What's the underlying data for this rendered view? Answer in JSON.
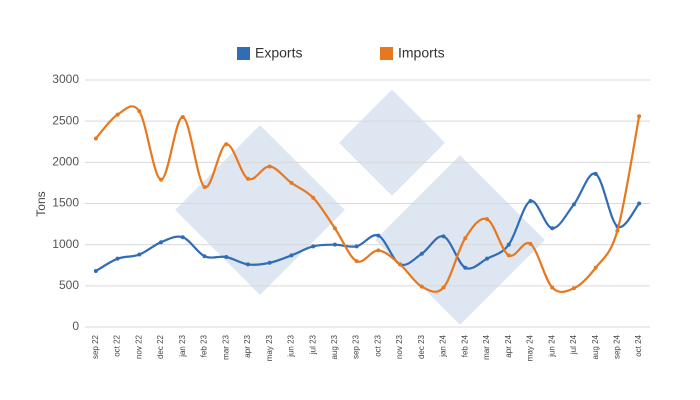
{
  "chart_data": {
    "type": "line",
    "ylabel": "Tons",
    "categories": [
      "sep 22",
      "oct 22",
      "nov 22",
      "dec 22",
      "jan 23",
      "feb 23",
      "mar 23",
      "apr 23",
      "may 23",
      "jun 23",
      "jul 23",
      "aug 23",
      "sep 23",
      "oct 23",
      "nov 23",
      "dec 23",
      "jan 24",
      "feb 24",
      "mar 24",
      "apr 24",
      "may 24",
      "jun 24",
      "jul 24",
      "aug 24",
      "sep 24",
      "oct 24"
    ],
    "series": [
      {
        "name": "Exports",
        "color": "#2f6db5",
        "values": [
          680,
          830,
          880,
          1030,
          1090,
          860,
          850,
          760,
          780,
          870,
          980,
          1000,
          980,
          1110,
          760,
          890,
          1100,
          720,
          830,
          1000,
          1530,
          1200,
          1490,
          1860,
          1220,
          1500
        ]
      },
      {
        "name": "Imports",
        "color": "#e8781f",
        "values": [
          2290,
          2580,
          2620,
          1790,
          2550,
          1700,
          2220,
          1800,
          1950,
          1750,
          1570,
          1200,
          800,
          930,
          760,
          490,
          480,
          1080,
          1310,
          870,
          1010,
          480,
          470,
          720,
          1170,
          2560
        ]
      }
    ],
    "ylim": [
      0,
      3000
    ],
    "yticks": [
      0,
      500,
      1000,
      1500,
      2000,
      2500,
      3000
    ],
    "grid": true,
    "legend": "top"
  }
}
